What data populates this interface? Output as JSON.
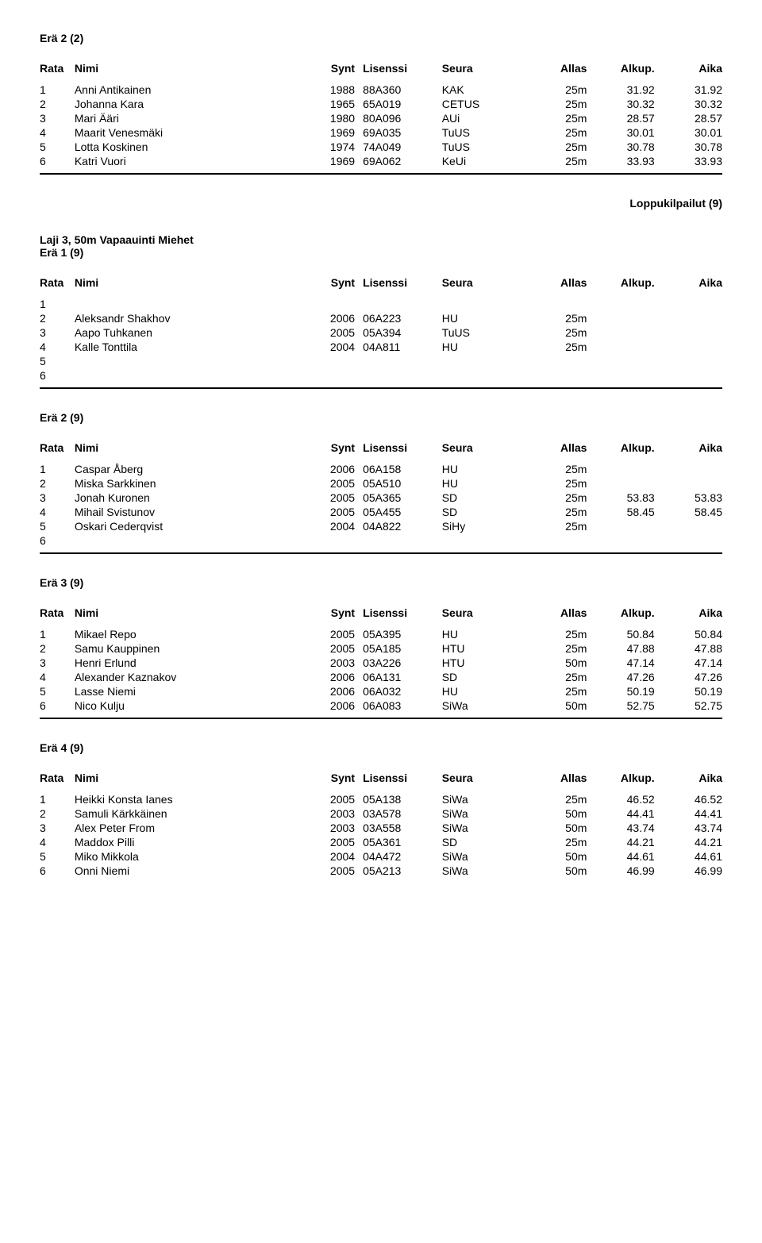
{
  "headers": {
    "rata": "Rata",
    "nimi": "Nimi",
    "synt": "Synt",
    "lisenssi": "Lisenssi",
    "seura": "Seura",
    "allas": "Allas",
    "alkup": "Alkup.",
    "aika": "Aika"
  },
  "right_label": "Loppukilpailut (9)",
  "event3_title": "Laji 3, 50m Vapaauinti Miehet",
  "heats": [
    {
      "title": "Erä 2 (2)",
      "rows": [
        {
          "rata": "1",
          "nimi": "Anni Antikainen",
          "synt": "1988",
          "lisenssi": "88A360",
          "seura": "KAK",
          "allas": "25m",
          "alkup": "31.92",
          "aika": "31.92"
        },
        {
          "rata": "2",
          "nimi": "Johanna Kara",
          "synt": "1965",
          "lisenssi": "65A019",
          "seura": "CETUS",
          "allas": "25m",
          "alkup": "30.32",
          "aika": "30.32"
        },
        {
          "rata": "3",
          "nimi": "Mari Ääri",
          "synt": "1980",
          "lisenssi": "80A096",
          "seura": "AUi",
          "allas": "25m",
          "alkup": "28.57",
          "aika": "28.57"
        },
        {
          "rata": "4",
          "nimi": "Maarit Venesmäki",
          "synt": "1969",
          "lisenssi": "69A035",
          "seura": "TuUS",
          "allas": "25m",
          "alkup": "30.01",
          "aika": "30.01"
        },
        {
          "rata": "5",
          "nimi": "Lotta Koskinen",
          "synt": "1974",
          "lisenssi": "74A049",
          "seura": "TuUS",
          "allas": "25m",
          "alkup": "30.78",
          "aika": "30.78"
        },
        {
          "rata": "6",
          "nimi": "Katri Vuori",
          "synt": "1969",
          "lisenssi": "69A062",
          "seura": "KeUi",
          "allas": "25m",
          "alkup": "33.93",
          "aika": "33.93"
        }
      ]
    },
    {
      "title": "Erä 1 (9)",
      "rows": [
        {
          "rata": "1",
          "nimi": "",
          "synt": "",
          "lisenssi": "",
          "seura": "",
          "allas": "",
          "alkup": "",
          "aika": ""
        },
        {
          "rata": "2",
          "nimi": "Aleksandr Shakhov",
          "synt": "2006",
          "lisenssi": "06A223",
          "seura": "HU",
          "allas": "25m",
          "alkup": "",
          "aika": ""
        },
        {
          "rata": "3",
          "nimi": "Aapo Tuhkanen",
          "synt": "2005",
          "lisenssi": "05A394",
          "seura": "TuUS",
          "allas": "25m",
          "alkup": "",
          "aika": ""
        },
        {
          "rata": "4",
          "nimi": "Kalle Tonttila",
          "synt": "2004",
          "lisenssi": "04A811",
          "seura": "HU",
          "allas": "25m",
          "alkup": "",
          "aika": ""
        },
        {
          "rata": "5",
          "nimi": "",
          "synt": "",
          "lisenssi": "",
          "seura": "",
          "allas": "",
          "alkup": "",
          "aika": ""
        },
        {
          "rata": "6",
          "nimi": "",
          "synt": "",
          "lisenssi": "",
          "seura": "",
          "allas": "",
          "alkup": "",
          "aika": ""
        }
      ]
    },
    {
      "title": "Erä 2 (9)",
      "rows": [
        {
          "rata": "1",
          "nimi": "Caspar Åberg",
          "synt": "2006",
          "lisenssi": "06A158",
          "seura": "HU",
          "allas": "25m",
          "alkup": "",
          "aika": ""
        },
        {
          "rata": "2",
          "nimi": "Miska Sarkkinen",
          "synt": "2005",
          "lisenssi": "05A510",
          "seura": "HU",
          "allas": "25m",
          "alkup": "",
          "aika": ""
        },
        {
          "rata": "3",
          "nimi": "Jonah Kuronen",
          "synt": "2005",
          "lisenssi": "05A365",
          "seura": "SD",
          "allas": "25m",
          "alkup": "53.83",
          "aika": "53.83"
        },
        {
          "rata": "4",
          "nimi": "Mihail Svistunov",
          "synt": "2005",
          "lisenssi": "05A455",
          "seura": "SD",
          "allas": "25m",
          "alkup": "58.45",
          "aika": "58.45"
        },
        {
          "rata": "5",
          "nimi": "Oskari Cederqvist",
          "synt": "2004",
          "lisenssi": "04A822",
          "seura": "SiHy",
          "allas": "25m",
          "alkup": "",
          "aika": ""
        },
        {
          "rata": "6",
          "nimi": "",
          "synt": "",
          "lisenssi": "",
          "seura": "",
          "allas": "",
          "alkup": "",
          "aika": ""
        }
      ]
    },
    {
      "title": "Erä 3 (9)",
      "rows": [
        {
          "rata": "1",
          "nimi": "Mikael Repo",
          "synt": "2005",
          "lisenssi": "05A395",
          "seura": "HU",
          "allas": "25m",
          "alkup": "50.84",
          "aika": "50.84"
        },
        {
          "rata": "2",
          "nimi": "Samu Kauppinen",
          "synt": "2005",
          "lisenssi": "05A185",
          "seura": "HTU",
          "allas": "25m",
          "alkup": "47.88",
          "aika": "47.88"
        },
        {
          "rata": "3",
          "nimi": "Henri Erlund",
          "synt": "2003",
          "lisenssi": "03A226",
          "seura": "HTU",
          "allas": "50m",
          "alkup": "47.14",
          "aika": "47.14"
        },
        {
          "rata": "4",
          "nimi": "Alexander Kaznakov",
          "synt": "2006",
          "lisenssi": "06A131",
          "seura": "SD",
          "allas": "25m",
          "alkup": "47.26",
          "aika": "47.26"
        },
        {
          "rata": "5",
          "nimi": "Lasse Niemi",
          "synt": "2006",
          "lisenssi": "06A032",
          "seura": "HU",
          "allas": "25m",
          "alkup": "50.19",
          "aika": "50.19"
        },
        {
          "rata": "6",
          "nimi": "Nico Kulju",
          "synt": "2006",
          "lisenssi": "06A083",
          "seura": "SiWa",
          "allas": "50m",
          "alkup": "52.75",
          "aika": "52.75"
        }
      ]
    },
    {
      "title": "Erä 4 (9)",
      "rows": [
        {
          "rata": "1",
          "nimi": "Heikki Konsta Ianes",
          "synt": "2005",
          "lisenssi": "05A138",
          "seura": "SiWa",
          "allas": "25m",
          "alkup": "46.52",
          "aika": "46.52"
        },
        {
          "rata": "2",
          "nimi": "Samuli Kärkkäinen",
          "synt": "2003",
          "lisenssi": "03A578",
          "seura": "SiWa",
          "allas": "50m",
          "alkup": "44.41",
          "aika": "44.41"
        },
        {
          "rata": "3",
          "nimi": "Alex Peter From",
          "synt": "2003",
          "lisenssi": "03A558",
          "seura": "SiWa",
          "allas": "50m",
          "alkup": "43.74",
          "aika": "43.74"
        },
        {
          "rata": "4",
          "nimi": "Maddox Pilli",
          "synt": "2005",
          "lisenssi": "05A361",
          "seura": "SD",
          "allas": "25m",
          "alkup": "44.21",
          "aika": "44.21"
        },
        {
          "rata": "5",
          "nimi": "Miko Mikkola",
          "synt": "2004",
          "lisenssi": "04A472",
          "seura": "SiWa",
          "allas": "50m",
          "alkup": "44.61",
          "aika": "44.61"
        },
        {
          "rata": "6",
          "nimi": "Onni Niemi",
          "synt": "2005",
          "lisenssi": "05A213",
          "seura": "SiWa",
          "allas": "50m",
          "alkup": "46.99",
          "aika": "46.99"
        }
      ]
    }
  ]
}
